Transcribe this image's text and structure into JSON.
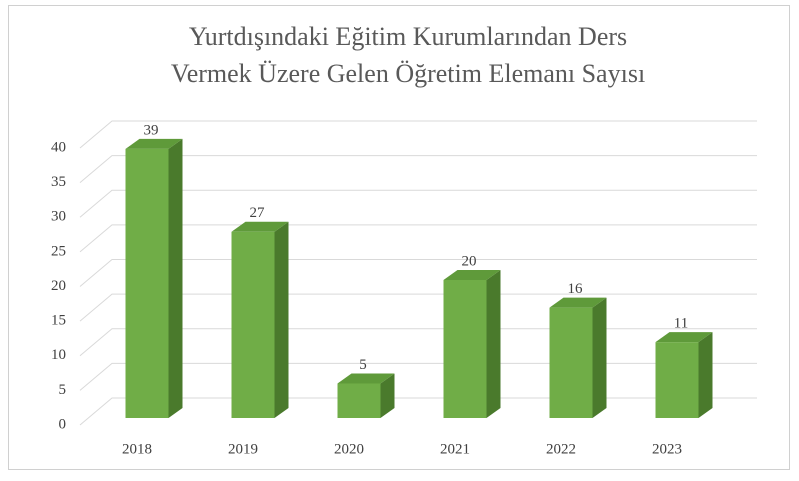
{
  "chart_data": {
    "type": "bar3d",
    "title": [
      "Yurtdışındaki Eğitim Kurumlarından Ders",
      "Vermek Üzere Gelen Öğretim Elemanı Sayısı"
    ],
    "categories": [
      "2018",
      "2019",
      "2020",
      "2021",
      "2022",
      "2023"
    ],
    "values": [
      39,
      27,
      5,
      20,
      16,
      11
    ],
    "color": "#70ad47",
    "ylim": [
      0,
      40
    ],
    "yticks": [
      0,
      5,
      10,
      15,
      20,
      25,
      30,
      35,
      40
    ],
    "grid": true
  }
}
